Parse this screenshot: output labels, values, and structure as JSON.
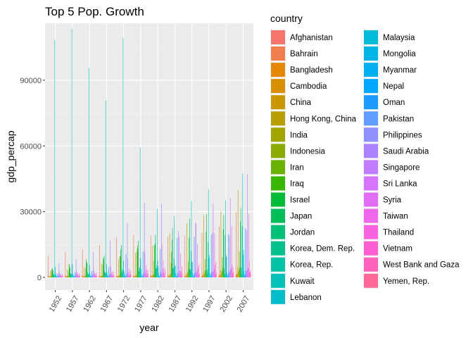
{
  "chart_data": {
    "type": "bar",
    "title": "Top 5 Pop. Growth",
    "xlabel": "year",
    "ylabel": "gdp_percap",
    "ylim": [
      0,
      116000
    ],
    "yticks": [
      0,
      30000,
      60000,
      90000
    ],
    "ytick_labels": [
      "0",
      "30000",
      "60000",
      "90000"
    ],
    "grid": true,
    "legend_position": "right",
    "legend_title": "country",
    "categories": [
      "1952",
      "1957",
      "1962",
      "1967",
      "1972",
      "1977",
      "1982",
      "1987",
      "1992",
      "1997",
      "2002",
      "2007"
    ],
    "series": [
      {
        "name": "Afghanistan",
        "color": "#F8766D",
        "values": [
          779,
          821,
          853,
          836,
          740,
          786,
          978,
          852,
          649,
          635,
          727,
          975
        ]
      },
      {
        "name": "Bahrain",
        "color": "#F07E4F",
        "values": [
          9867,
          11636,
          12753,
          14805,
          18269,
          19340,
          19211,
          18524,
          19036,
          20292,
          23404,
          29796
        ]
      },
      {
        "name": "Bangladesh",
        "color": "#E58700",
        "values": [
          684,
          662,
          686,
          721,
          630,
          660,
          677,
          752,
          838,
          973,
          1136,
          1391
        ]
      },
      {
        "name": "Cambodia",
        "color": "#D89000",
        "values": [
          368,
          434,
          497,
          523,
          422,
          525,
          624,
          684,
          682,
          734,
          896,
          1713
        ]
      },
      {
        "name": "China",
        "color": "#C99800",
        "values": [
          400,
          576,
          488,
          613,
          677,
          741,
          962,
          1379,
          1656,
          2289,
          3119,
          4959
        ]
      },
      {
        "name": "Hong Kong, China",
        "color": "#B79F00",
        "values": [
          3054,
          3629,
          4693,
          6198,
          8316,
          11186,
          14561,
          20038,
          24758,
          28378,
          30209,
          39725
        ]
      },
      {
        "name": "India",
        "color": "#A3A500",
        "values": [
          547,
          590,
          658,
          701,
          724,
          813,
          856,
          977,
          1164,
          1458,
          1747,
          2452
        ]
      },
      {
        "name": "Indonesia",
        "color": "#8BAB00",
        "values": [
          750,
          859,
          849,
          762,
          1111,
          1383,
          1517,
          1748,
          2383,
          3119,
          2874,
          3541
        ]
      },
      {
        "name": "Iran",
        "color": "#6BB100",
        "values": [
          3035,
          3290,
          4187,
          5907,
          9613,
          11889,
          7608,
          6642,
          7235,
          8263,
          9241,
          11606
        ]
      },
      {
        "name": "Iraq",
        "color": "#39B600",
        "values": [
          4130,
          6229,
          8342,
          8931,
          9576,
          14688,
          14517,
          11644,
          3746,
          3076,
          4391,
          4471
        ]
      },
      {
        "name": "Israel",
        "color": "#00BA38",
        "values": [
          4087,
          5385,
          7105,
          8394,
          12787,
          13307,
          15367,
          17122,
          18051,
          20897,
          21906,
          25523
        ]
      },
      {
        "name": "Japan",
        "color": "#00BC59",
        "values": [
          3217,
          4318,
          6577,
          9848,
          14779,
          16610,
          19384,
          22376,
          26825,
          28817,
          28605,
          31656
        ]
      },
      {
        "name": "Jordan",
        "color": "#00BF76",
        "values": [
          1547,
          1886,
          2348,
          2741,
          2110,
          2852,
          4161,
          4449,
          3431,
          3645,
          3845,
          4519
        ]
      },
      {
        "name": "Korea, Dem. Rep.",
        "color": "#00C08E",
        "values": [
          1088,
          1571,
          1622,
          2144,
          3702,
          4106,
          4106,
          4107,
          3726,
          1691,
          1647,
          1593
        ]
      },
      {
        "name": "Korea, Rep.",
        "color": "#00C1A3",
        "values": [
          1031,
          1488,
          1536,
          2029,
          3031,
          4657,
          5623,
          8533,
          12104,
          15994,
          19234,
          23348
        ]
      },
      {
        "name": "Kuwait",
        "color": "#00C0B8",
        "values": [
          108382,
          113523,
          95458,
          80895,
          109348,
          59265,
          31354,
          28118,
          34932,
          40301,
          35110,
          47307
        ]
      },
      {
        "name": "Lebanon",
        "color": "#00BDC9",
        "values": [
          4835,
          6090,
          5715,
          6006,
          7486,
          8659,
          7640,
          5377,
          6890,
          8755,
          9314,
          10461
        ]
      },
      {
        "name": "Malaysia",
        "color": "#00BAD9",
        "values": [
          1831,
          1810,
          2036,
          2278,
          2849,
          3828,
          4920,
          5249,
          7277,
          10133,
          10207,
          12452
        ]
      },
      {
        "name": "Mongolia",
        "color": "#00B5E6",
        "values": [
          786,
          912,
          1056,
          1226,
          1421,
          1648,
          1863,
          2010,
          1786,
          1902,
          2140,
          3096
        ]
      },
      {
        "name": "Myanmar",
        "color": "#00AFF2",
        "values": [
          331,
          350,
          388,
          349,
          357,
          371,
          424,
          385,
          347,
          415,
          611,
          944
        ]
      },
      {
        "name": "Nepal",
        "color": "#00A6FF",
        "values": [
          546,
          598,
          652,
          676,
          674,
          695,
          718,
          775,
          897,
          1011,
          1057,
          1091
        ]
      },
      {
        "name": "Oman",
        "color": "#1E9BFF",
        "values": [
          1828,
          2243,
          2924,
          4721,
          10618,
          11848,
          12955,
          18115,
          18617,
          19702,
          19774,
          22316
        ]
      },
      {
        "name": "Pakistan",
        "color": "#619CFF",
        "values": [
          685,
          747,
          804,
          943,
          1050,
          1176,
          1443,
          1705,
          1972,
          2049,
          2092,
          2606
        ]
      },
      {
        "name": "Philippines",
        "color": "#8F91FF",
        "values": [
          1273,
          1548,
          1650,
          1814,
          1989,
          2373,
          2603,
          2189,
          2279,
          2536,
          2651,
          3190
        ]
      },
      {
        "name": "Saudi Arabia",
        "color": "#AB82FF",
        "values": [
          6460,
          8157,
          11626,
          16903,
          24837,
          34168,
          33693,
          21199,
          24841,
          20586,
          19014,
          21655
        ]
      },
      {
        "name": "Singapore",
        "color": "#C27CFF",
        "values": [
          2315,
          2843,
          3674,
          4977,
          8597,
          11210,
          15169,
          18862,
          24769,
          33519,
          36023,
          47143
        ]
      },
      {
        "name": "Sri Lanka",
        "color": "#D575FE",
        "values": [
          1084,
          1073,
          1074,
          1136,
          1213,
          1348,
          1648,
          1877,
          2154,
          2665,
          3015,
          3970
        ]
      },
      {
        "name": "Syria",
        "color": "#E36EF6",
        "values": [
          1644,
          2117,
          2194,
          1882,
          2571,
          3196,
          3761,
          3116,
          3341,
          4014,
          4091,
          4185
        ]
      },
      {
        "name": "Taiwan",
        "color": "#EF67EB",
        "values": [
          1207,
          1507,
          1823,
          2644,
          4063,
          5597,
          7426,
          11054,
          15216,
          20207,
          23235,
          28718
        ]
      },
      {
        "name": "Thailand",
        "color": "#F863DF",
        "values": [
          758,
          793,
          1002,
          1296,
          1525,
          1962,
          2393,
          2982,
          4617,
          5853,
          5914,
          7458
        ]
      },
      {
        "name": "Vietnam",
        "color": "#FD61D1",
        "values": [
          605,
          676,
          772,
          637,
          700,
          714,
          707,
          821,
          989,
          1386,
          1764,
          2442
        ]
      },
      {
        "name": "West Bank and Gaza",
        "color": "#FF62BC",
        "values": [
          1516,
          1827,
          2199,
          2650,
          3133,
          3683,
          4337,
          5108,
          6018,
          7110,
          4516,
          3026
        ]
      },
      {
        "name": "Yemen, Rep.",
        "color": "#FF6A98",
        "values": [
          782,
          805,
          826,
          862,
          1265,
          1830,
          1978,
          1972,
          1879,
          2117,
          2234,
          2281
        ]
      }
    ]
  }
}
